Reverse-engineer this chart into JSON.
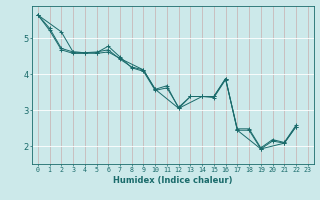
{
  "title": "",
  "xlabel": "Humidex (Indice chaleur)",
  "ylabel": "",
  "background_color": "#cce9ea",
  "grid_color": "#ffffff",
  "line_color": "#1a6b6b",
  "xlim": [
    -0.5,
    23.5
  ],
  "ylim": [
    1.5,
    5.9
  ],
  "yticks": [
    2,
    3,
    4,
    5
  ],
  "xticks": [
    0,
    1,
    2,
    3,
    4,
    5,
    6,
    7,
    8,
    9,
    10,
    11,
    12,
    13,
    14,
    15,
    16,
    17,
    18,
    19,
    20,
    21,
    22,
    23
  ],
  "series1": [
    [
      0,
      5.65
    ],
    [
      1,
      5.28
    ],
    [
      2,
      4.72
    ],
    [
      3,
      4.62
    ],
    [
      4,
      4.6
    ],
    [
      5,
      4.62
    ],
    [
      6,
      4.68
    ],
    [
      7,
      4.42
    ],
    [
      8,
      4.2
    ],
    [
      9,
      4.12
    ],
    [
      10,
      3.58
    ],
    [
      11,
      3.68
    ],
    [
      12,
      3.05
    ],
    [
      13,
      3.38
    ],
    [
      14,
      3.38
    ],
    [
      15,
      3.35
    ],
    [
      16,
      3.85
    ],
    [
      17,
      2.48
    ],
    [
      18,
      2.48
    ],
    [
      19,
      1.95
    ],
    [
      20,
      2.18
    ],
    [
      21,
      2.1
    ],
    [
      22,
      2.58
    ]
  ],
  "series2": [
    [
      0,
      5.65
    ],
    [
      1,
      5.22
    ],
    [
      2,
      4.68
    ],
    [
      3,
      4.58
    ],
    [
      4,
      4.58
    ],
    [
      5,
      4.6
    ],
    [
      6,
      4.78
    ],
    [
      7,
      4.48
    ],
    [
      8,
      4.18
    ],
    [
      9,
      4.08
    ],
    [
      10,
      3.55
    ],
    [
      11,
      3.62
    ],
    [
      12,
      3.08
    ],
    [
      13,
      3.38
    ],
    [
      14,
      3.38
    ],
    [
      15,
      3.38
    ],
    [
      16,
      3.88
    ],
    [
      17,
      2.44
    ],
    [
      18,
      2.44
    ],
    [
      19,
      1.92
    ],
    [
      20,
      2.14
    ],
    [
      21,
      2.08
    ],
    [
      22,
      2.54
    ]
  ],
  "series3": [
    [
      0,
      5.65
    ],
    [
      2,
      5.18
    ],
    [
      3,
      4.62
    ],
    [
      5,
      4.58
    ],
    [
      6,
      4.62
    ],
    [
      7,
      4.44
    ],
    [
      9,
      4.12
    ],
    [
      10,
      3.58
    ],
    [
      12,
      3.05
    ],
    [
      14,
      3.38
    ],
    [
      15,
      3.38
    ],
    [
      16,
      3.88
    ],
    [
      17,
      2.44
    ],
    [
      19,
      1.92
    ],
    [
      21,
      2.08
    ],
    [
      22,
      2.54
    ]
  ],
  "xlabel_fontsize": 6.0,
  "xtick_fontsize": 4.8,
  "ytick_fontsize": 6.0,
  "linewidth": 0.7,
  "markersize": 3.5,
  "markeredgewidth": 0.7
}
